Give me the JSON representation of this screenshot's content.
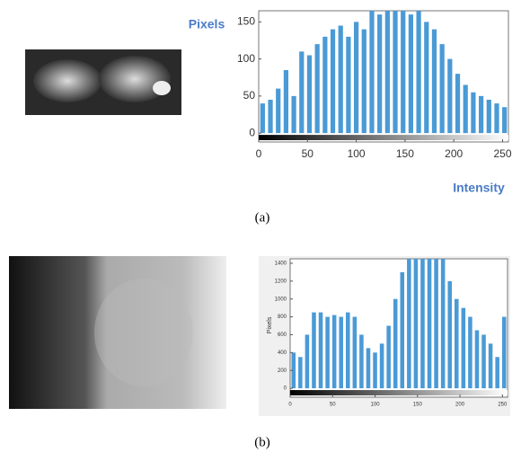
{
  "chart_data": [
    {
      "type": "histogram",
      "ylabel": "Pixels",
      "xlabel": "Intensity",
      "color": "#4a9ad6",
      "bins": [
        0,
        8,
        16,
        24,
        32,
        40,
        48,
        56,
        64,
        72,
        80,
        88,
        96,
        104,
        112,
        120,
        128,
        136,
        144,
        152,
        160,
        168,
        176,
        184,
        192,
        200,
        208,
        216,
        224,
        232,
        240,
        248,
        256
      ],
      "counts": [
        40,
        45,
        60,
        85,
        50,
        110,
        105,
        120,
        130,
        140,
        145,
        130,
        150,
        140,
        165,
        160,
        165,
        165,
        165,
        160,
        165,
        150,
        140,
        120,
        100,
        80,
        65,
        55,
        50,
        45,
        40,
        35
      ],
      "xlim": [
        0,
        256
      ],
      "ylim": [
        -12,
        165
      ],
      "xticks": [
        0,
        50,
        100,
        150,
        200,
        250
      ],
      "yticks": [
        0,
        50,
        100,
        150
      ],
      "caption": "(a)"
    },
    {
      "type": "histogram",
      "ylabel": "Pixels",
      "color": "#4a9ad6",
      "bins": [
        0,
        8,
        16,
        24,
        32,
        40,
        48,
        56,
        64,
        72,
        80,
        88,
        96,
        104,
        112,
        120,
        128,
        136,
        144,
        152,
        160,
        168,
        176,
        184,
        192,
        200,
        208,
        216,
        224,
        232,
        240,
        248,
        256
      ],
      "counts": [
        400,
        350,
        600,
        850,
        850,
        800,
        820,
        800,
        850,
        800,
        600,
        450,
        400,
        500,
        700,
        1000,
        1300,
        1450,
        1450,
        1450,
        1450,
        1450,
        1450,
        1200,
        1000,
        900,
        800,
        650,
        600,
        500,
        350,
        800
      ],
      "xlim": [
        0,
        256
      ],
      "ylim": [
        -100,
        1450
      ],
      "xticks": [
        0,
        50,
        100,
        150,
        200,
        250
      ],
      "yticks": [
        0,
        200,
        400,
        600,
        800,
        1000,
        1200,
        1400
      ],
      "caption": "(b)"
    }
  ]
}
